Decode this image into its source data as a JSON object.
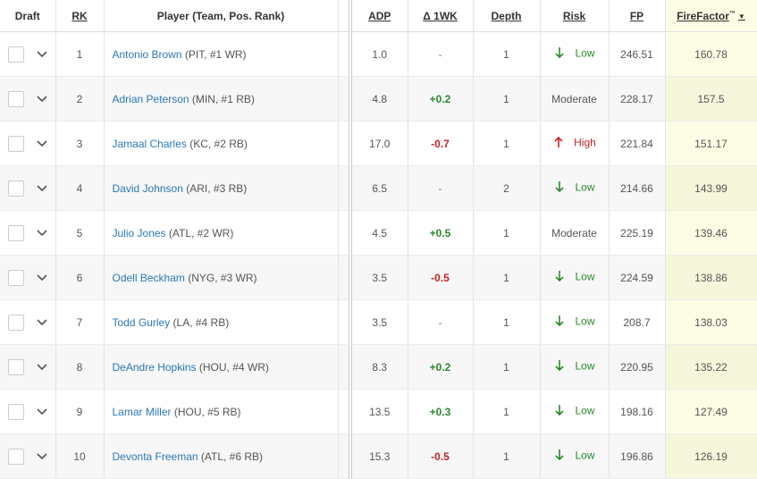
{
  "header": {
    "draft": "Draft",
    "rk": "RK",
    "player": "Player (Team, Pos. Rank)",
    "adp": "ADP",
    "wk": "Δ 1WK",
    "depth": "Depth",
    "risk": "Risk",
    "fp": "FP",
    "firefactor": "FireFactor",
    "tm": "™"
  },
  "rows": [
    {
      "rk": "1",
      "name": "Antonio Brown",
      "info": " (PIT, #1 WR)",
      "adp": "1.0",
      "wk": "-",
      "wk_type": "na",
      "depth": "1",
      "risk": "Low",
      "risk_type": "low",
      "fp": "246.51",
      "ff": "160.78"
    },
    {
      "rk": "2",
      "name": "Adrian Peterson",
      "info": " (MIN, #1 RB)",
      "adp": "4.8",
      "wk": "+0.2",
      "wk_type": "pos",
      "depth": "1",
      "risk": "Moderate",
      "risk_type": "mod",
      "fp": "228.17",
      "ff": "157.5"
    },
    {
      "rk": "3",
      "name": "Jamaal Charles",
      "info": " (KC, #2 RB)",
      "adp": "17.0",
      "wk": "-0.7",
      "wk_type": "neg",
      "depth": "1",
      "risk": "High",
      "risk_type": "high",
      "fp": "221.84",
      "ff": "151.17"
    },
    {
      "rk": "4",
      "name": "David Johnson",
      "info": " (ARI, #3 RB)",
      "adp": "6.5",
      "wk": "-",
      "wk_type": "na",
      "depth": "2",
      "risk": "Low",
      "risk_type": "low",
      "fp": "214.66",
      "ff": "143.99"
    },
    {
      "rk": "5",
      "name": "Julio Jones",
      "info": " (ATL, #2 WR)",
      "adp": "4.5",
      "wk": "+0.5",
      "wk_type": "pos",
      "depth": "1",
      "risk": "Moderate",
      "risk_type": "mod",
      "fp": "225.19",
      "ff": "139.46"
    },
    {
      "rk": "6",
      "name": "Odell Beckham",
      "info": " (NYG, #3 WR)",
      "adp": "3.5",
      "wk": "-0.5",
      "wk_type": "neg",
      "depth": "1",
      "risk": "Low",
      "risk_type": "low",
      "fp": "224.59",
      "ff": "138.86"
    },
    {
      "rk": "7",
      "name": "Todd Gurley",
      "info": " (LA, #4 RB)",
      "adp": "3.5",
      "wk": "-",
      "wk_type": "na",
      "depth": "1",
      "risk": "Low",
      "risk_type": "low",
      "fp": "208.7",
      "ff": "138.03"
    },
    {
      "rk": "8",
      "name": "DeAndre Hopkins",
      "info": " (HOU, #4 WR)",
      "adp": "8.3",
      "wk": "+0.2",
      "wk_type": "pos",
      "depth": "1",
      "risk": "Low",
      "risk_type": "low",
      "fp": "220.95",
      "ff": "135.22"
    },
    {
      "rk": "9",
      "name": "Lamar Miller",
      "info": " (HOU, #5 RB)",
      "adp": "13.5",
      "wk": "+0.3",
      "wk_type": "pos",
      "depth": "1",
      "risk": "Low",
      "risk_type": "low",
      "fp": "198.16",
      "ff": "127.49"
    },
    {
      "rk": "10",
      "name": "Devonta Freeman",
      "info": " (ATL, #6 RB)",
      "adp": "15.3",
      "wk": "-0.5",
      "wk_type": "neg",
      "depth": "1",
      "risk": "Low",
      "risk_type": "low",
      "fp": "196.86",
      "ff": "126.19"
    }
  ]
}
